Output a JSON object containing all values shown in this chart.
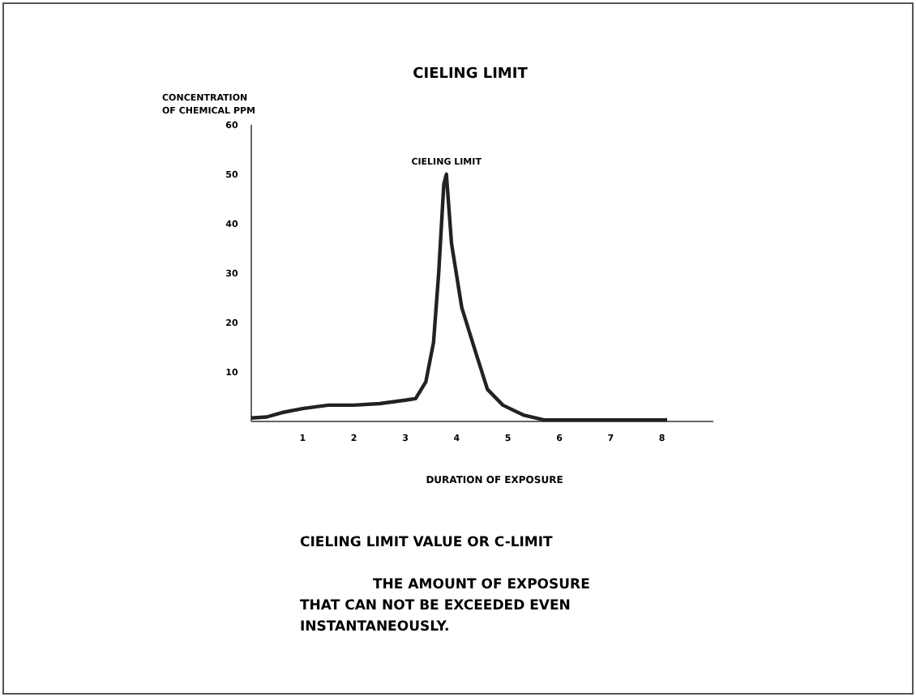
{
  "chart_data": {
    "type": "line",
    "title": "CIELING LIMIT",
    "xlabel": "DURATION OF EXPOSURE",
    "ylabel": "CONCENTRATION\nOF CHEMICAL PPM",
    "x": [
      0,
      0.3,
      0.6,
      1,
      1.5,
      2,
      2.5,
      3,
      3.2,
      3.4,
      3.55,
      3.65,
      3.75,
      3.8,
      3.9,
      4.1,
      4.4,
      4.6,
      4.9,
      5.3,
      5.7,
      6,
      7,
      8.1
    ],
    "series": [
      {
        "color": "#222222",
        "values": [
          0.7,
          0.9,
          1.8,
          2.6,
          3.3,
          3.3,
          3.6,
          4.3,
          4.6,
          8,
          16,
          30,
          48,
          50,
          36,
          23,
          13,
          6.5,
          3.3,
          1.3,
          0.3,
          0.3,
          0.3,
          0.3
        ]
      }
    ],
    "xlim": [
      0,
      9
    ],
    "xticks": [
      1,
      2,
      3,
      4,
      5,
      6,
      7,
      8
    ],
    "ylim": [
      0,
      60
    ],
    "yticks": [
      10,
      20,
      30,
      40,
      50,
      60
    ],
    "grid": false,
    "marker": "none",
    "line_style": "solid",
    "annotations": [
      {
        "text": "CIELING LIMIT",
        "x": 3.8,
        "y": 50
      },
      "CIELING LIMIT VALUE OR C-LIMIT",
      "THE AMOUNT OF EXPOSURE\nTHAT CAN NOT BE EXCEEDED EVEN\nINSTANTANEOUSLY."
    ]
  }
}
